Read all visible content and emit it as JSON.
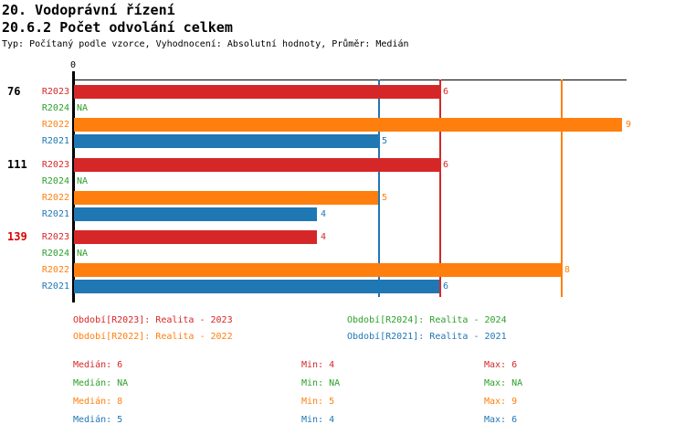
{
  "header": {
    "title_line1": "20. Vodoprávní řízení",
    "title_line2": "20.6.2 Počet odvolání celkem",
    "meta_line": "Typ: Počítaný podle vzorce, Vyhodnocení: Absolutní hodnoty, Průměr: Medián"
  },
  "colors": {
    "r2023": "#d62728",
    "r2024": "#2ca02c",
    "r2022": "#ff7f0e",
    "r2021": "#1f77b4",
    "axis": "#000000",
    "group_label_default": "#000000",
    "group_label_highlight": "#dd0000"
  },
  "chart_data": {
    "type": "bar",
    "orientation": "horizontal",
    "title": "20.6.2 Počet odvolání celkem",
    "axis": {
      "origin_label": "0",
      "xlim": [
        0,
        9.07
      ],
      "grid": false
    },
    "series_order": [
      "R2023",
      "R2024",
      "R2022",
      "R2021"
    ],
    "groups": [
      {
        "label": "76",
        "label_color": "#000000",
        "rows": [
          {
            "series": "R2023",
            "value": 6,
            "display": "6"
          },
          {
            "series": "R2024",
            "value": null,
            "display": "NA"
          },
          {
            "series": "R2022",
            "value": 9,
            "display": "9"
          },
          {
            "series": "R2021",
            "value": 5,
            "display": "5"
          }
        ]
      },
      {
        "label": "111",
        "label_color": "#000000",
        "rows": [
          {
            "series": "R2023",
            "value": 6,
            "display": "6"
          },
          {
            "series": "R2024",
            "value": null,
            "display": "NA"
          },
          {
            "series": "R2022",
            "value": 5,
            "display": "5"
          },
          {
            "series": "R2021",
            "value": 4,
            "display": "4"
          }
        ]
      },
      {
        "label": "139",
        "label_color": "#dd0000",
        "rows": [
          {
            "series": "R2023",
            "value": 4,
            "display": "4"
          },
          {
            "series": "R2024",
            "value": null,
            "display": "NA"
          },
          {
            "series": "R2022",
            "value": 8,
            "display": "8"
          },
          {
            "series": "R2021",
            "value": 6,
            "display": "6"
          }
        ]
      }
    ],
    "median_lines": [
      {
        "series": "R2021",
        "value": 5,
        "color": "#1f77b4"
      },
      {
        "series": "R2023",
        "value": 6,
        "color": "#d62728"
      },
      {
        "series": "R2022",
        "value": 8,
        "color": "#ff7f0e"
      }
    ]
  },
  "legend": [
    {
      "label": "Období[R2023]: Realita - 2023",
      "color": "#d62728"
    },
    {
      "label": "Období[R2022]: Realita - 2022",
      "color": "#ff7f0e"
    },
    {
      "label": "Období[R2024]: Realita - 2024",
      "color": "#2ca02c"
    },
    {
      "label": "Období[R2021]: Realita - 2021",
      "color": "#1f77b4"
    }
  ],
  "stats": [
    {
      "series": "R2023",
      "color": "#d62728",
      "median": "Medián: 6",
      "min": "Min: 4",
      "max": "Max: 6"
    },
    {
      "series": "R2024",
      "color": "#2ca02c",
      "median": "Medián: NA",
      "min": "Min: NA",
      "max": "Max: NA"
    },
    {
      "series": "R2022",
      "color": "#ff7f0e",
      "median": "Medián: 8",
      "min": "Min: 5",
      "max": "Max: 9"
    },
    {
      "series": "R2021",
      "color": "#1f77b4",
      "median": "Medián: 5",
      "min": "Min: 4",
      "max": "Max: 6"
    }
  ]
}
